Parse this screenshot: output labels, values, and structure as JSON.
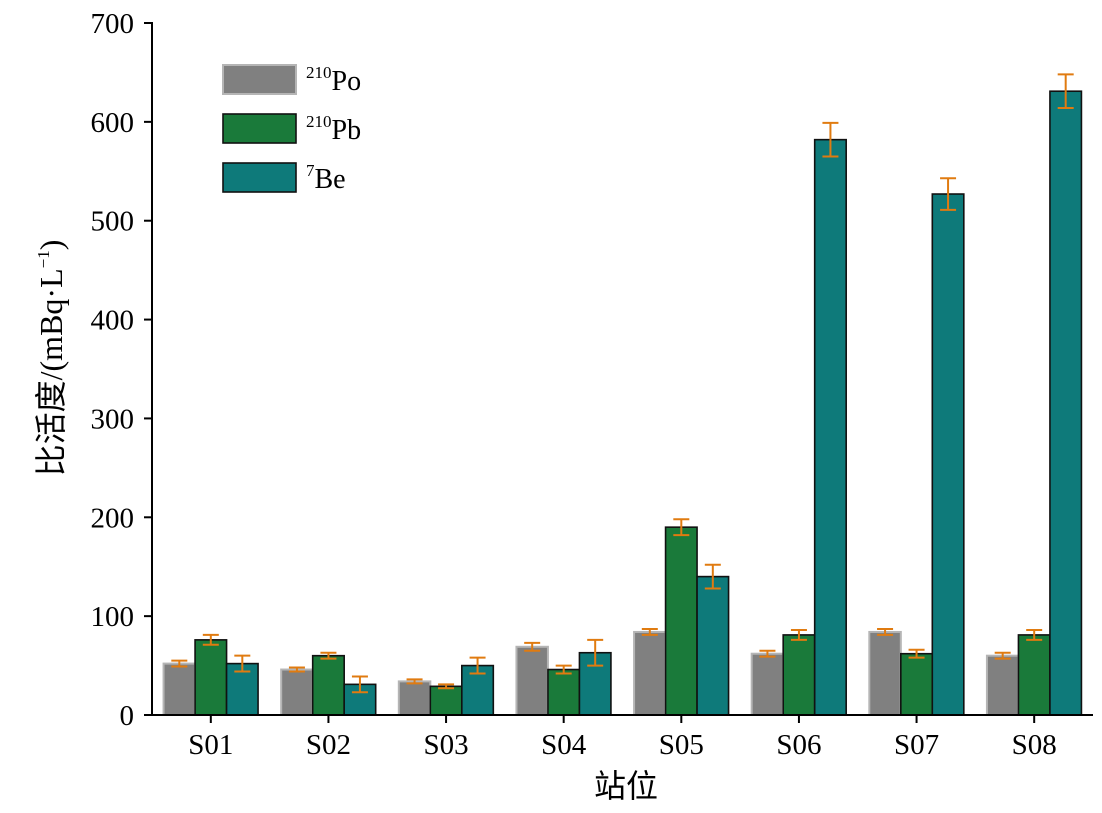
{
  "chart_data": {
    "type": "bar",
    "title": "",
    "xlabel": "站位",
    "ylabel": "比活度/(mBq·L",
    "ylabel_sup": "−1",
    "ylabel_close": ")",
    "ylim": [
      0,
      700
    ],
    "yticks": [
      0,
      100,
      200,
      300,
      400,
      500,
      600,
      700
    ],
    "categories": [
      "S01",
      "S02",
      "S03",
      "S04",
      "S05",
      "S06",
      "S07",
      "S08"
    ],
    "legend_position": "top-left",
    "grid": false,
    "series": [
      {
        "name": "210Po",
        "name_sup": "210",
        "name_base": "Po",
        "color": "#808080",
        "values": [
          52,
          46,
          34,
          69,
          84,
          62,
          84,
          60
        ],
        "errors": [
          3,
          2,
          2,
          4,
          3,
          3,
          3,
          3
        ]
      },
      {
        "name": "210Pb",
        "name_sup": "210",
        "name_base": "Pb",
        "color": "#1a7a3a",
        "values": [
          76,
          60,
          29,
          46,
          190,
          81,
          62,
          81
        ],
        "errors": [
          5,
          3,
          2,
          4,
          8,
          5,
          4,
          5
        ]
      },
      {
        "name": "7Be",
        "name_sup": "7",
        "name_base": "Be",
        "color": "#0e7a7a",
        "values": [
          52,
          31,
          50,
          63,
          140,
          582,
          527,
          631
        ],
        "errors": [
          8,
          8,
          8,
          13,
          12,
          17,
          16,
          17
        ]
      }
    ],
    "error_bar_color": "#e07b10"
  }
}
